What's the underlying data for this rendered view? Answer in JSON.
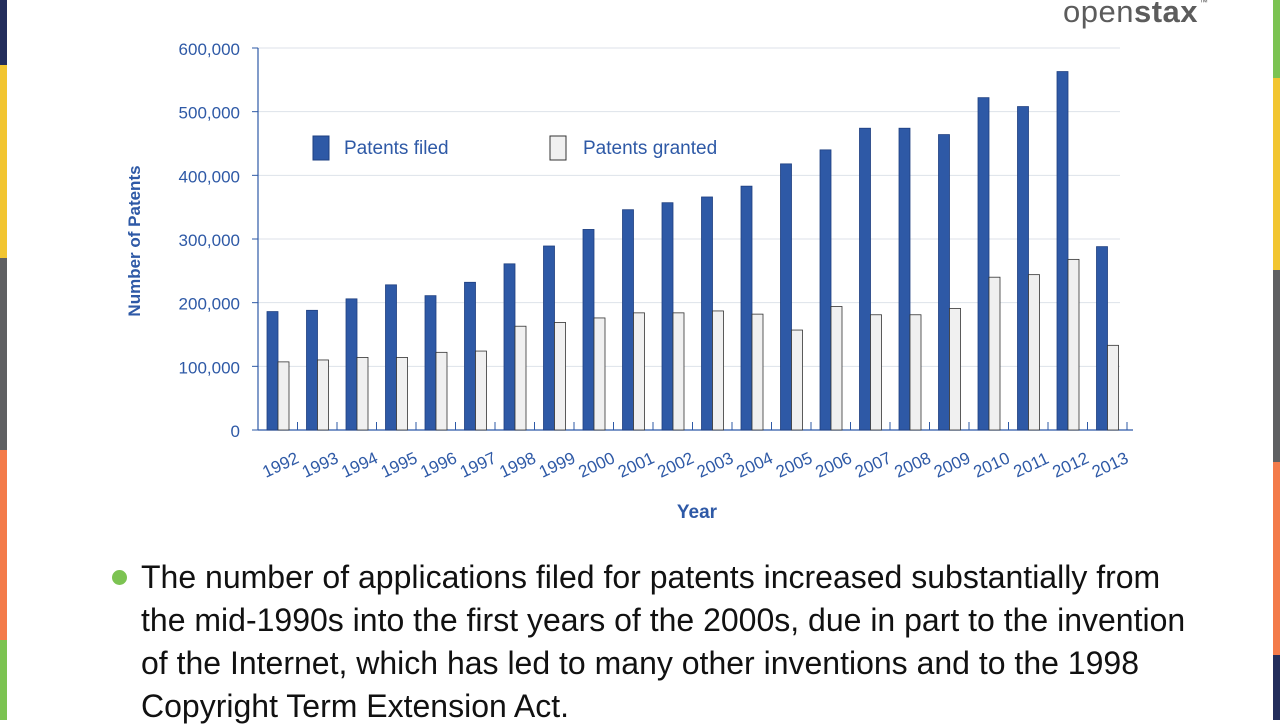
{
  "brand": {
    "name_light": "open",
    "name_bold": "stax",
    "mark": "™"
  },
  "slide": {
    "edge_colors": {
      "navy": "#232e5c",
      "yellow": "#f2c530",
      "gray": "#5f6062",
      "orange": "#f37b4a",
      "green": "#7cc352"
    },
    "bullet": "The number of applications filed for patents increased substantially from the mid-1990s into the first years of the 2000s, due in part to the invention of the Internet, which has led to many other inventions and to the 1998 Copyright Term Extension Act."
  },
  "chart_data": {
    "type": "bar",
    "xlabel": "Year",
    "ylabel": "Number of Patents",
    "ylim": [
      0,
      600000
    ],
    "yticks": [
      0,
      100000,
      200000,
      300000,
      400000,
      500000,
      600000
    ],
    "ytick_labels": [
      "0",
      "100,000",
      "200,000",
      "300,000",
      "400,000",
      "500,000",
      "600,000"
    ],
    "grid": true,
    "legend": "top-left",
    "categories": [
      "1992",
      "1993",
      "1994",
      "1995",
      "1996",
      "1997",
      "1998",
      "1999",
      "2000",
      "2001",
      "2002",
      "2003",
      "2004",
      "2005",
      "2006",
      "2007",
      "2008",
      "2009",
      "2010",
      "2011",
      "2012",
      "2013"
    ],
    "series": [
      {
        "name": "Patents filed",
        "color": "#2e59a6",
        "values": [
          186000,
          188000,
          206000,
          228000,
          211000,
          232000,
          261000,
          289000,
          315000,
          346000,
          357000,
          366000,
          383000,
          418000,
          440000,
          474000,
          474000,
          464000,
          522000,
          508000,
          563000,
          288000
        ]
      },
      {
        "name": "Patents granted",
        "color": "#f0f0f0",
        "values": [
          107000,
          110000,
          114000,
          114000,
          122000,
          124000,
          163000,
          169000,
          176000,
          184000,
          184000,
          187000,
          182000,
          157000,
          194000,
          181000,
          181000,
          191000,
          240000,
          244000,
          268000,
          133000
        ]
      }
    ]
  }
}
